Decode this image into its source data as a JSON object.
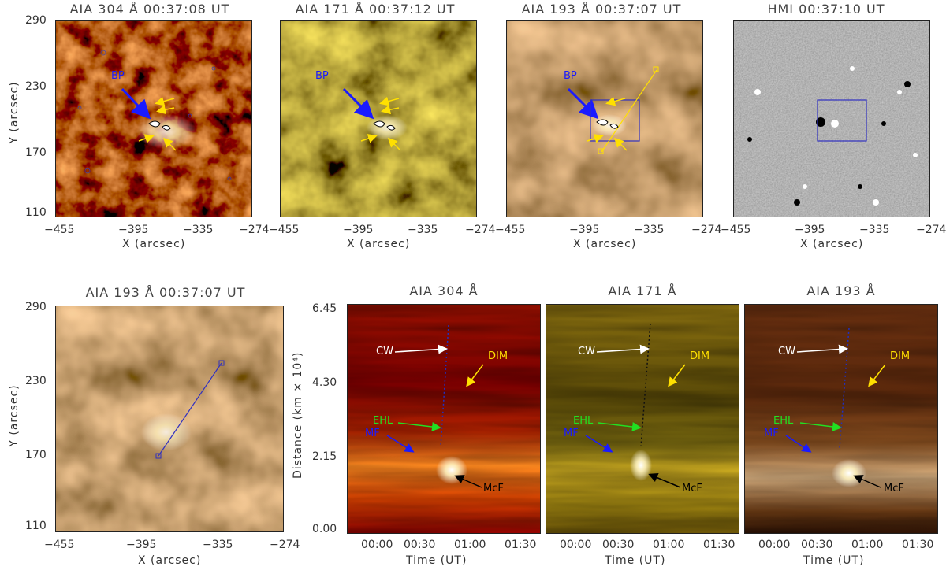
{
  "top_panels": [
    {
      "title": "AIA 304 Å 00:37:08 UT",
      "xticks": [
        "−455",
        "−395",
        "−335",
        "−274"
      ],
      "yticks": [
        "290",
        "230",
        "170",
        "110"
      ],
      "xlabel": "X (arcsec)",
      "ylabel": "Y (arcsec)",
      "label_bp": "BP"
    },
    {
      "title": "AIA 171 Å 00:37:12 UT",
      "xticks": [
        "−455",
        "−395",
        "−335",
        "−274"
      ],
      "xlabel": "X (arcsec)",
      "label_bp": "BP"
    },
    {
      "title": "AIA 193 Å 00:37:07 UT",
      "xticks": [
        "−455",
        "−395",
        "−335",
        "−274"
      ],
      "xlabel": "X (arcsec)",
      "label_bp": "BP"
    },
    {
      "title": "HMI 00:37:10 UT",
      "xticks": [
        "−455",
        "−395",
        "−335",
        "−274"
      ],
      "xlabel": "X (arcsec)"
    }
  ],
  "zoom_panel": {
    "title": "AIA 193 Å 00:37:07 UT",
    "xticks": [
      "−455",
      "−395",
      "−335",
      "−274"
    ],
    "yticks": [
      "290",
      "230",
      "170",
      "110"
    ],
    "xlabel": "X (arcsec)",
    "ylabel": "Y (arcsec)"
  },
  "timeslices": [
    {
      "title": "AIA 304 Å",
      "xticks": [
        "00:00",
        "00:30",
        "01:00",
        "01:30"
      ],
      "xlabel": "Time (UT)",
      "yticks": [
        "6.45",
        "4.30",
        "2.15",
        "0.00"
      ],
      "ylabel": "Distance (km × 10⁴)"
    },
    {
      "title": "AIA 171 Å",
      "xticks": [
        "00:00",
        "00:30",
        "01:00",
        "01:30"
      ],
      "xlabel": "Time (UT)"
    },
    {
      "title": "AIA 193 Å",
      "xticks": [
        "00:00",
        "00:30",
        "01:00",
        "01:30"
      ],
      "xlabel": "Time (UT)"
    }
  ],
  "annotations": {
    "cw": "CW",
    "dim": "DIM",
    "ehl": "EHL",
    "mf": "MF",
    "mcf": "McF"
  },
  "colors": {
    "cw": "#ffffff",
    "dim": "#ffe000",
    "ehl": "#22e022",
    "mf": "#1a1aff",
    "mcf": "#000000",
    "box": "#3030c0"
  }
}
